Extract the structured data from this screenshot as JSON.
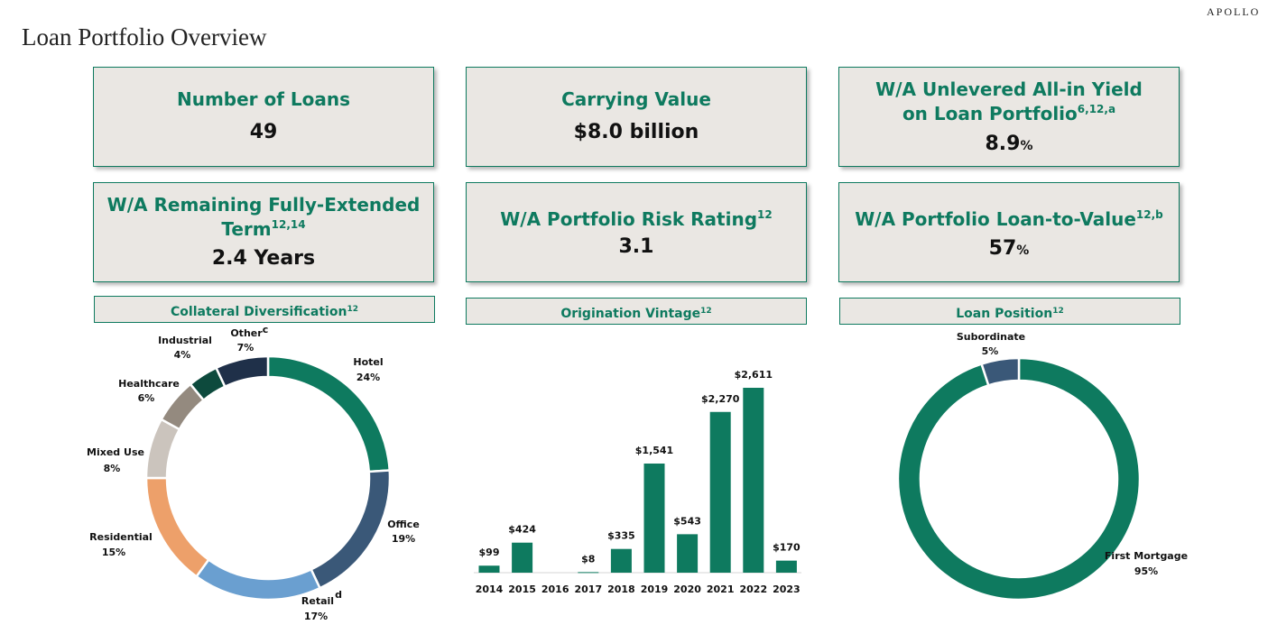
{
  "header": {
    "brand": "APOLLO",
    "title": "Loan Portfolio Overview"
  },
  "kpis": [
    {
      "label": "Number of Loans",
      "sup": "",
      "label2": "",
      "sup2": "",
      "value": "49",
      "unit": ""
    },
    {
      "label": "Carrying Value",
      "sup": "",
      "label2": "",
      "sup2": "",
      "value": "$8.0 billion",
      "unit": ""
    },
    {
      "label": "W/A Unlevered All-in Yield",
      "sup": "",
      "label2": "on Loan Portfolio",
      "sup2": "6,12,a",
      "value": "8.9",
      "unit": "%"
    },
    {
      "label": "W/A Remaining Fully-Extended",
      "sup": "",
      "label2": "Term",
      "sup2": "12,14",
      "value": "2.4 Years",
      "unit": ""
    },
    {
      "label": "W/A Portfolio Risk Rating",
      "sup": "12",
      "label2": "",
      "sup2": "",
      "value": "3.1",
      "unit": ""
    },
    {
      "label": "W/A Portfolio Loan-to-Value",
      "sup": "12,b",
      "label2": "",
      "sup2": "",
      "value": "57",
      "unit": "%"
    }
  ],
  "sections": [
    {
      "label": "Collateral Diversification",
      "sup": "12"
    },
    {
      "label": "Origination Vintage",
      "sup": "12"
    },
    {
      "label": "Loan Position",
      "sup": "12"
    }
  ],
  "colors": {
    "accent": "#0e7a5f",
    "panel": "#eae7e3"
  },
  "chart_data": [
    {
      "type": "pie",
      "title": "Collateral Diversification",
      "slices": [
        {
          "name": "Hotel",
          "pct": "24%",
          "value": 24,
          "color": "#0e7a5f",
          "note": ""
        },
        {
          "name": "Office",
          "pct": "19%",
          "value": 19,
          "color": "#3a5878",
          "note": ""
        },
        {
          "name": "Retail",
          "pct": "17%",
          "value": 17,
          "color": "#6a9fd0",
          "note": "d"
        },
        {
          "name": "Residential",
          "pct": "15%",
          "value": 15,
          "color": "#eda06a",
          "note": ""
        },
        {
          "name": "Mixed Use",
          "pct": "8%",
          "value": 8,
          "color": "#cbc4bd",
          "note": ""
        },
        {
          "name": "Healthcare",
          "pct": "6%",
          "value": 6,
          "color": "#948a7f",
          "note": ""
        },
        {
          "name": "Industrial",
          "pct": "4%",
          "value": 4,
          "color": "#0d4a3d",
          "note": ""
        },
        {
          "name": "Other",
          "pct": "7%",
          "value": 7,
          "color": "#1f3049",
          "note": "c"
        }
      ]
    },
    {
      "type": "bar",
      "title": "Origination Vintage",
      "categories": [
        "2014",
        "2015",
        "2016",
        "2017",
        "2018",
        "2019",
        "2020",
        "2021",
        "2022",
        "2023"
      ],
      "values": [
        99,
        424,
        0,
        8,
        335,
        1541,
        543,
        2270,
        2611,
        170
      ],
      "labels": [
        "$99",
        "$424",
        "",
        "$8",
        "$335",
        "$1,541",
        "$543",
        "$2,270",
        "$2,611",
        "$170"
      ],
      "ylim": [
        0,
        2611
      ]
    },
    {
      "type": "pie",
      "title": "Loan Position",
      "slices": [
        {
          "name": "First Mortgage",
          "pct": "95%",
          "value": 95,
          "color": "#0e7a5f"
        },
        {
          "name": "Subordinate",
          "pct": "5%",
          "value": 5,
          "color": "#3a5878"
        }
      ]
    }
  ]
}
